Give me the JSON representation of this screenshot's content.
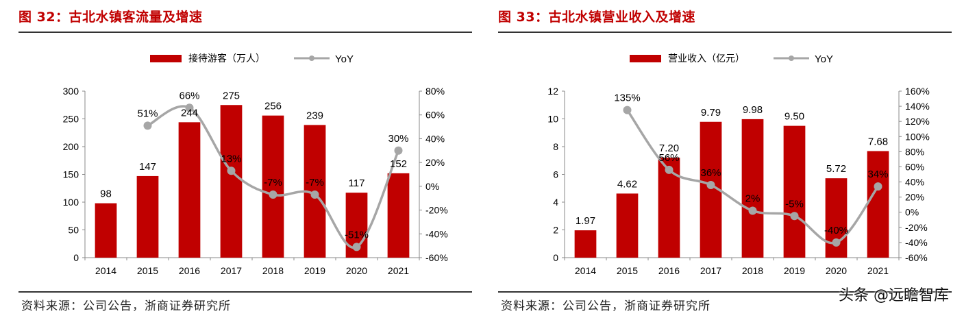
{
  "figures": [
    {
      "title": "图 32：古北水镇客流量及增速",
      "source": "资料来源：公司公告，浙商证券研究所",
      "chart_data": {
        "type": "bar",
        "categories": [
          "2014",
          "2015",
          "2016",
          "2017",
          "2018",
          "2019",
          "2020",
          "2021"
        ],
        "series": [
          {
            "name": "接待游客（万人）",
            "kind": "bar",
            "axis": "left",
            "color": "#c00000",
            "values": [
              98,
              147,
              244,
              275,
              256,
              239,
              117,
              152
            ],
            "labels": [
              "98",
              "147",
              "244",
              "275",
              "256",
              "239",
              "117",
              "152"
            ]
          },
          {
            "name": "YoY",
            "kind": "line",
            "axis": "right",
            "color": "#a6a6a6",
            "values": [
              null,
              51,
              66,
              13,
              -7,
              -7,
              -51,
              30
            ],
            "labels": [
              "",
              "51%",
              "66%",
              "13%",
              "-7%",
              "-7%",
              "-51%",
              "30%"
            ]
          }
        ],
        "y_left": {
          "min": 0,
          "max": 300,
          "ticks": [
            "0",
            "50",
            "100",
            "150",
            "200",
            "250",
            "300"
          ]
        },
        "y_right": {
          "min": -60,
          "max": 80,
          "ticks": [
            "-60%",
            "-40%",
            "-20%",
            "0%",
            "20%",
            "40%",
            "60%",
            "80%"
          ]
        },
        "legend": [
          "接待游客（万人）",
          "YoY"
        ],
        "legend_position": "top-center"
      }
    },
    {
      "title": "图 33：古北水镇营业收入及增速",
      "source": "资料来源：公司公告，浙商证券研究所",
      "chart_data": {
        "type": "bar",
        "categories": [
          "2014",
          "2015",
          "2016",
          "2017",
          "2018",
          "2019",
          "2020",
          "2021"
        ],
        "series": [
          {
            "name": "营业收入（亿元）",
            "kind": "bar",
            "axis": "left",
            "color": "#c00000",
            "values": [
              1.97,
              4.62,
              7.2,
              9.79,
              9.98,
              9.5,
              5.72,
              7.68
            ],
            "labels": [
              "1.97",
              "4.62",
              "7.20",
              "9.79",
              "9.98",
              "9.50",
              "5.72",
              "7.68"
            ]
          },
          {
            "name": "YoY",
            "kind": "line",
            "axis": "right",
            "color": "#a6a6a6",
            "values": [
              null,
              135,
              56,
              36,
              2,
              -5,
              -40,
              34
            ],
            "labels": [
              "",
              "135%",
              "56%",
              "36%",
              "2%",
              "-5%",
              "-40%",
              "34%"
            ]
          }
        ],
        "y_left": {
          "min": 0,
          "max": 12,
          "ticks": [
            "0",
            "2",
            "4",
            "6",
            "8",
            "10",
            "12"
          ]
        },
        "y_right": {
          "min": -60,
          "max": 160,
          "ticks": [
            "-60%",
            "-40%",
            "-20%",
            "0%",
            "20%",
            "40%",
            "60%",
            "80%",
            "100%",
            "120%",
            "140%",
            "160%"
          ]
        },
        "legend": [
          "营业收入（亿元）",
          "YoY"
        ],
        "legend_position": "top-center"
      }
    }
  ],
  "watermark": "头条 @远瞻智库"
}
